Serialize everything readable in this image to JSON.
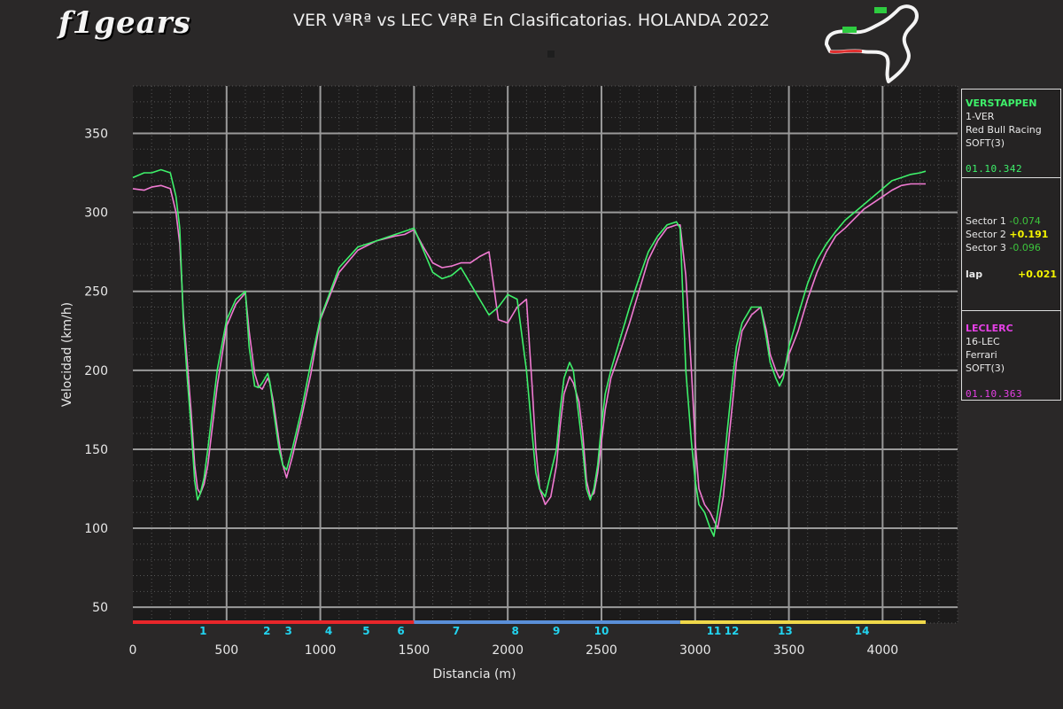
{
  "header": {
    "logo_text": "f1gears",
    "title": "VER VªRª vs LEC VªRª En Clasificatorias. HOLANDA 2022"
  },
  "colors": {
    "ver": "#3ef06a",
    "lec": "#f07ad2",
    "sector1": "#e8262a",
    "sector2": "#5a8fd8",
    "sector3": "#f0d84a",
    "corner_label": "#22d4f0",
    "delta_green": "#3cc43c",
    "delta_yellow": "#f5f500"
  },
  "driver1": {
    "name": "VERSTAPPEN",
    "code": "1-VER",
    "team": "Red Bull Racing",
    "tyre": "SOFT(3)",
    "lap_time": "01.10.342"
  },
  "deltas": {
    "sector1_label": "Sector 1",
    "sector1_value": "-0.074",
    "sector2_label": "Sector 2",
    "sector2_value": "+0.191",
    "sector3_label": "Sector 3",
    "sector3_value": "-0.096",
    "lap_label": "lap",
    "lap_value": "+0.021"
  },
  "driver2": {
    "name": "LECLERC",
    "code": "16-LEC",
    "team": "Ferrari",
    "tyre": "SOFT(3)",
    "lap_time": "01.10.363"
  },
  "chart_data": {
    "type": "line",
    "xlabel": "Distancia (m)",
    "ylabel": "Velocidad (km/h)",
    "xlim": [
      0,
      4400
    ],
    "ylim": [
      40,
      380
    ],
    "x_ticks": [
      0,
      500,
      1000,
      1500,
      2000,
      2500,
      3000,
      3500,
      4000
    ],
    "y_ticks": [
      50,
      100,
      150,
      200,
      250,
      300,
      350
    ],
    "grid": true,
    "sectors": [
      {
        "from": 0,
        "to": 1500,
        "color": "sector1"
      },
      {
        "from": 1500,
        "to": 2920,
        "color": "sector2"
      },
      {
        "from": 2920,
        "to": 4230,
        "color": "sector3"
      }
    ],
    "corners": [
      {
        "label": "1",
        "x": 375
      },
      {
        "label": "2",
        "x": 715
      },
      {
        "label": "3",
        "x": 830
      },
      {
        "label": "4",
        "x": 1045
      },
      {
        "label": "5",
        "x": 1245
      },
      {
        "label": "6",
        "x": 1430
      },
      {
        "label": "7",
        "x": 1725
      },
      {
        "label": "8",
        "x": 2040
      },
      {
        "label": "9",
        "x": 2260
      },
      {
        "label": "10",
        "x": 2500
      },
      {
        "label": "11",
        "x": 3100
      },
      {
        "label": "12",
        "x": 3195
      },
      {
        "label": "13",
        "x": 3480
      },
      {
        "label": "14",
        "x": 3890
      }
    ],
    "series": [
      {
        "name": "VERSTAPPEN",
        "x": [
          0,
          60,
          100,
          150,
          200,
          230,
          250,
          270,
          290,
          310,
          330,
          345,
          360,
          380,
          400,
          450,
          500,
          550,
          600,
          620,
          650,
          670,
          690,
          720,
          730,
          750,
          780,
          800,
          820,
          850,
          900,
          950,
          1000,
          1100,
          1200,
          1300,
          1400,
          1450,
          1500,
          1550,
          1600,
          1650,
          1700,
          1750,
          1800,
          1850,
          1900,
          1950,
          2000,
          2050,
          2100,
          2130,
          2150,
          2170,
          2200,
          2230,
          2260,
          2280,
          2300,
          2330,
          2350,
          2380,
          2400,
          2420,
          2440,
          2460,
          2480,
          2500,
          2520,
          2550,
          2600,
          2650,
          2700,
          2750,
          2800,
          2850,
          2900,
          2920,
          2950,
          2980,
          3000,
          3020,
          3050,
          3080,
          3100,
          3120,
          3150,
          3170,
          3200,
          3220,
          3250,
          3300,
          3350,
          3380,
          3400,
          3430,
          3450,
          3470,
          3500,
          3550,
          3600,
          3650,
          3700,
          3750,
          3800,
          3850,
          3900,
          3950,
          4000,
          4050,
          4100,
          4150,
          4200,
          4230
        ],
        "y": [
          322,
          325,
          325,
          327,
          325,
          310,
          290,
          230,
          195,
          165,
          130,
          118,
          122,
          132,
          150,
          200,
          232,
          245,
          250,
          215,
          190,
          189,
          192,
          198,
          193,
          175,
          150,
          140,
          137,
          150,
          175,
          205,
          233,
          265,
          278,
          282,
          286,
          288,
          290,
          276,
          262,
          258,
          260,
          265,
          255,
          245,
          235,
          240,
          248,
          245,
          200,
          160,
          135,
          125,
          120,
          135,
          150,
          175,
          195,
          205,
          200,
          170,
          150,
          125,
          118,
          125,
          140,
          165,
          185,
          200,
          220,
          240,
          258,
          275,
          285,
          292,
          294,
          290,
          200,
          155,
          130,
          115,
          110,
          100,
          95,
          110,
          135,
          160,
          195,
          215,
          230,
          240,
          240,
          220,
          205,
          195,
          190,
          195,
          215,
          235,
          255,
          270,
          280,
          288,
          295,
          300,
          305,
          310,
          315,
          320,
          322,
          324,
          325,
          326
        ],
        "color": "ver"
      },
      {
        "name": "LECLERC",
        "x": [
          0,
          60,
          100,
          150,
          200,
          230,
          250,
          270,
          290,
          310,
          330,
          345,
          360,
          380,
          400,
          450,
          500,
          550,
          600,
          620,
          650,
          670,
          690,
          720,
          730,
          750,
          780,
          800,
          820,
          850,
          900,
          950,
          1000,
          1100,
          1200,
          1300,
          1400,
          1450,
          1500,
          1550,
          1600,
          1650,
          1700,
          1750,
          1800,
          1850,
          1900,
          1950,
          2000,
          2050,
          2100,
          2130,
          2150,
          2170,
          2200,
          2230,
          2260,
          2280,
          2300,
          2330,
          2350,
          2380,
          2400,
          2420,
          2440,
          2460,
          2480,
          2500,
          2520,
          2550,
          2600,
          2650,
          2700,
          2750,
          2800,
          2850,
          2900,
          2920,
          2950,
          2980,
          3000,
          3020,
          3050,
          3080,
          3100,
          3120,
          3150,
          3170,
          3200,
          3220,
          3250,
          3300,
          3350,
          3380,
          3400,
          3430,
          3450,
          3470,
          3500,
          3550,
          3600,
          3650,
          3700,
          3750,
          3800,
          3850,
          3900,
          3950,
          4000,
          4050,
          4100,
          4150,
          4200,
          4230
        ],
        "y": [
          315,
          314,
          316,
          317,
          315,
          300,
          280,
          235,
          205,
          175,
          140,
          125,
          122,
          128,
          140,
          190,
          228,
          242,
          249,
          225,
          198,
          190,
          188,
          195,
          192,
          180,
          155,
          140,
          132,
          145,
          170,
          198,
          232,
          262,
          276,
          282,
          285,
          286,
          289,
          278,
          268,
          265,
          266,
          268,
          268,
          272,
          275,
          232,
          230,
          240,
          245,
          190,
          150,
          125,
          115,
          120,
          140,
          165,
          185,
          196,
          192,
          180,
          160,
          130,
          120,
          122,
          135,
          155,
          175,
          195,
          212,
          230,
          250,
          270,
          282,
          290,
          292,
          292,
          260,
          200,
          155,
          125,
          115,
          110,
          105,
          100,
          120,
          145,
          180,
          205,
          225,
          235,
          240,
          225,
          210,
          200,
          195,
          198,
          210,
          225,
          245,
          262,
          275,
          285,
          290,
          296,
          302,
          306,
          310,
          314,
          317,
          318,
          318,
          318
        ],
        "color": "lec"
      }
    ]
  }
}
